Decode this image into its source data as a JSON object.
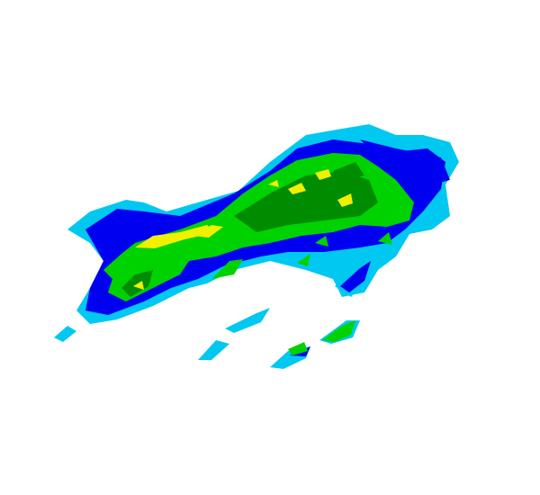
{
  "radar": {
    "colors": {
      "light": "#00c8f0",
      "moderate_light": "#0000f0",
      "moderate": "#00d200",
      "heavy": "#008c00",
      "very_heavy": "#f0f000",
      "extreme": "#e0a000"
    }
  }
}
